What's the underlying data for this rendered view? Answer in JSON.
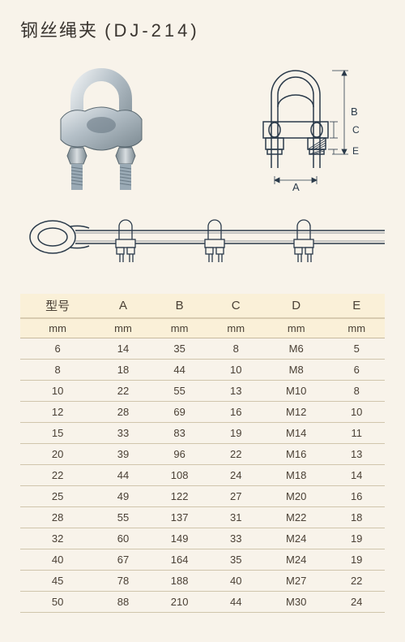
{
  "title": "钢丝绳夹",
  "product_code": "(DJ-214)",
  "header_bg": "#faf0d8",
  "page_bg": "#f8f3ea",
  "border_color": "#d0c5ac",
  "diagram_line_color": "#2a3a4a",
  "photo_colors": {
    "steel_light": "#d8dde0",
    "steel_mid": "#9aaab5",
    "steel_dark": "#6a7a85",
    "thread": "#8a98a0"
  },
  "dim_labels": {
    "a": "A",
    "b": "B",
    "c": "C",
    "e": "E"
  },
  "table": {
    "columns": [
      "型号",
      "A",
      "B",
      "C",
      "D",
      "E"
    ],
    "units": [
      "mm",
      "mm",
      "mm",
      "mm",
      "mm",
      "mm"
    ],
    "rows": [
      [
        "6",
        "14",
        "35",
        "8",
        "M6",
        "5"
      ],
      [
        "8",
        "18",
        "44",
        "10",
        "M8",
        "6"
      ],
      [
        "10",
        "22",
        "55",
        "13",
        "M10",
        "8"
      ],
      [
        "12",
        "28",
        "69",
        "16",
        "M12",
        "10"
      ],
      [
        "15",
        "33",
        "83",
        "19",
        "M14",
        "11"
      ],
      [
        "20",
        "39",
        "96",
        "22",
        "M16",
        "13"
      ],
      [
        "22",
        "44",
        "108",
        "24",
        "M18",
        "14"
      ],
      [
        "25",
        "49",
        "122",
        "27",
        "M20",
        "16"
      ],
      [
        "28",
        "55",
        "137",
        "31",
        "M22",
        "18"
      ],
      [
        "32",
        "60",
        "149",
        "33",
        "M24",
        "19"
      ],
      [
        "40",
        "67",
        "164",
        "35",
        "M24",
        "19"
      ],
      [
        "45",
        "78",
        "188",
        "40",
        "M27",
        "22"
      ],
      [
        "50",
        "88",
        "210",
        "44",
        "M30",
        "24"
      ]
    ]
  }
}
